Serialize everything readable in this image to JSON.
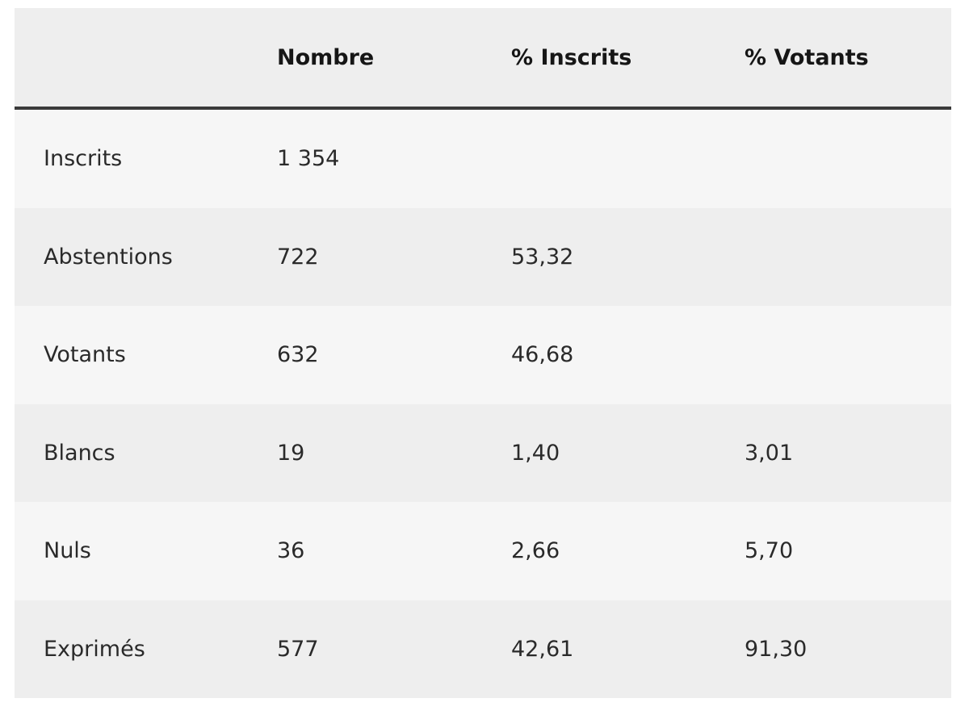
{
  "table": {
    "columns": [
      "Nombre",
      "% Inscrits",
      "% Votants"
    ],
    "rows": [
      {
        "label": "Inscrits",
        "cells": [
          "1 354",
          null,
          null
        ]
      },
      {
        "label": "Abstentions",
        "cells": [
          "722",
          "53,32",
          null
        ]
      },
      {
        "label": "Votants",
        "cells": [
          "632",
          "46,68",
          null
        ]
      },
      {
        "label": "Blancs",
        "cells": [
          "19",
          "1,40",
          "3,01"
        ]
      },
      {
        "label": "Nuls",
        "cells": [
          "36",
          "2,66",
          "5,70"
        ]
      },
      {
        "label": "Exprimés",
        "cells": [
          "577",
          "42,61",
          "91,30"
        ]
      }
    ]
  }
}
